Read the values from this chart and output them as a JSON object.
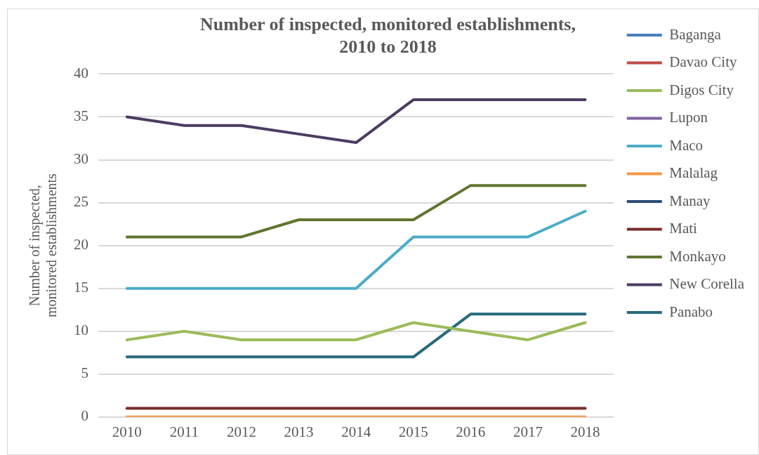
{
  "chart_data": {
    "type": "line",
    "title": "Number of inspected, monitored establishments, 2010 to 2018",
    "ylabel": "Number of inspected, monitored establishments",
    "categories": [
      "2010",
      "2011",
      "2012",
      "2013",
      "2014",
      "2015",
      "2016",
      "2017",
      "2018"
    ],
    "ylim": [
      0,
      40
    ],
    "yticks": [
      0,
      5,
      10,
      15,
      20,
      25,
      30,
      35,
      40
    ],
    "grid": "y",
    "legend": "right",
    "marker": "none",
    "line_style": "solid",
    "series": [
      {
        "name": "Baganga",
        "color": "#4a7ebb",
        "values": [
          null,
          null,
          null,
          null,
          null,
          null,
          null,
          null,
          null
        ]
      },
      {
        "name": "Davao City",
        "color": "#be4b48",
        "values": [
          null,
          null,
          null,
          null,
          null,
          null,
          null,
          null,
          null
        ]
      },
      {
        "name": "Digos City",
        "color": "#9bbb59",
        "values": [
          9,
          10,
          9,
          9,
          9,
          11,
          10,
          9,
          11
        ]
      },
      {
        "name": "Lupon",
        "color": "#7f61a0",
        "values": [
          null,
          null,
          null,
          null,
          null,
          null,
          null,
          null,
          null
        ]
      },
      {
        "name": "Maco",
        "color": "#4bacc6",
        "values": [
          15,
          15,
          15,
          15,
          15,
          21,
          21,
          21,
          24
        ]
      },
      {
        "name": "Malalag",
        "color": "#f79646",
        "values": [
          0,
          0,
          0,
          0,
          0,
          0,
          0,
          0,
          0
        ]
      },
      {
        "name": "Manay",
        "color": "#2c4d75",
        "values": [
          null,
          null,
          null,
          null,
          null,
          null,
          null,
          null,
          null
        ]
      },
      {
        "name": "Mati",
        "color": "#772c2a",
        "values": [
          1,
          1,
          1,
          1,
          1,
          1,
          1,
          1,
          1
        ]
      },
      {
        "name": "Monkayo",
        "color": "#5f7530",
        "values": [
          21,
          21,
          21,
          23,
          23,
          23,
          27,
          27,
          27
        ]
      },
      {
        "name": "New Corella",
        "color": "#4d3b62",
        "values": [
          35,
          34,
          34,
          33,
          32,
          37,
          37,
          37,
          37
        ]
      },
      {
        "name": "Panabo",
        "color": "#276a7c",
        "values": [
          7,
          7,
          7,
          7,
          7,
          7,
          12,
          12,
          12
        ]
      }
    ]
  }
}
